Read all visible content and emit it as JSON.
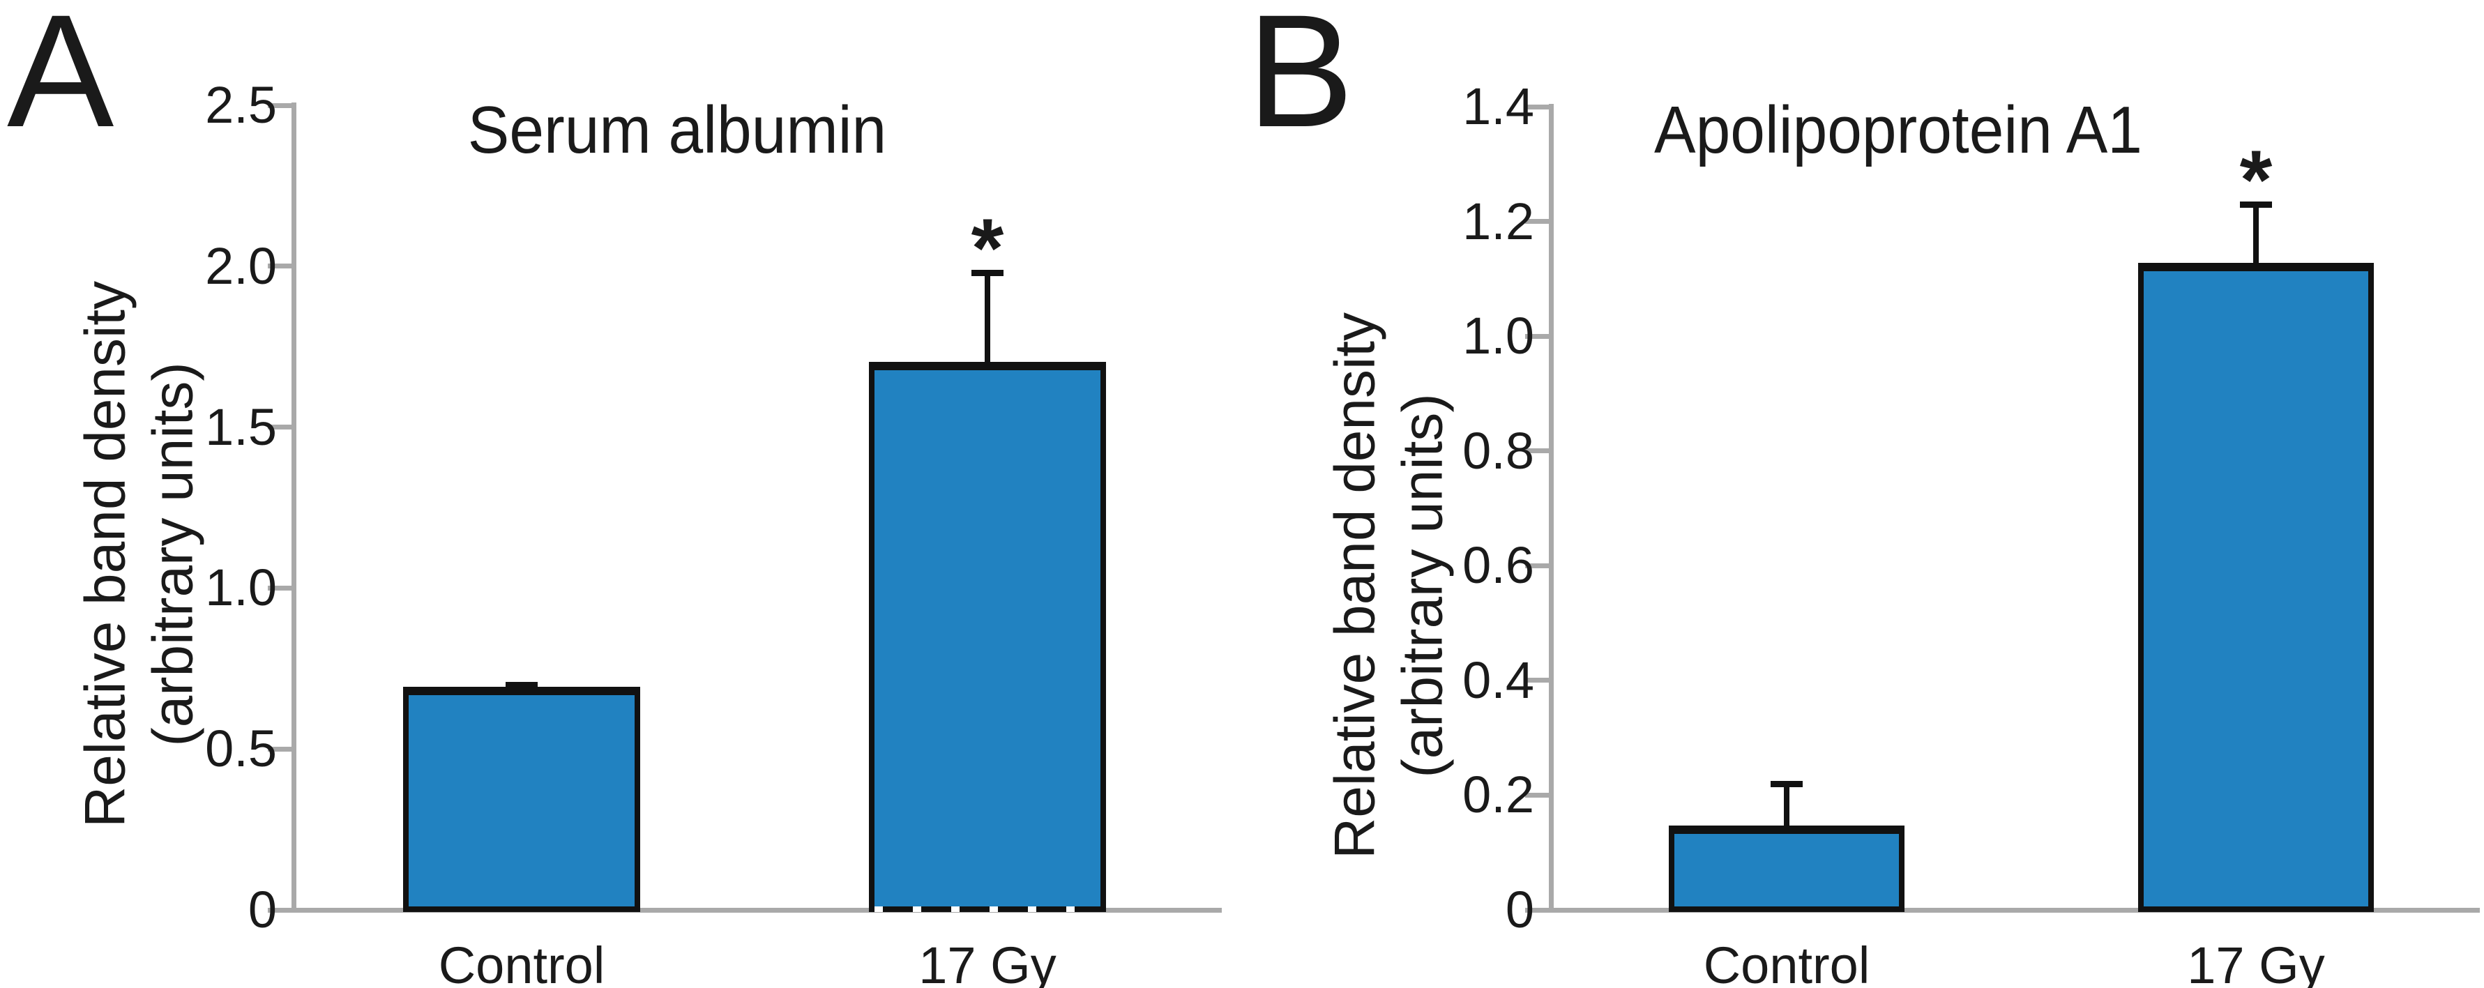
{
  "background": "#ffffff",
  "chart_data": [
    {
      "type": "bar",
      "panel_label": "A",
      "title": "Serum albumin",
      "ylabel_lines": [
        "Relative band density",
        "(arbitrary units)"
      ],
      "categories": [
        "Control",
        "17 Gy"
      ],
      "values": [
        0.68,
        1.69
      ],
      "error_up": [
        0.02,
        0.29
      ],
      "significance": [
        "",
        "*"
      ],
      "ylim": [
        0,
        2.5
      ],
      "yticks": [
        0,
        0.5,
        1.0,
        1.5,
        2.0,
        2.5
      ],
      "ytick_labels": [
        "0",
        "0.5",
        "1.0",
        "1.5",
        "2.0",
        "2.5"
      ],
      "grid": false,
      "legend": null,
      "bar_color": "#2182c1",
      "axis_color": "#a9a9a9"
    },
    {
      "type": "bar",
      "panel_label": "B",
      "title": "Apolipoprotein A1",
      "ylabel_lines": [
        "Relative band density",
        "(arbitrary units)"
      ],
      "categories": [
        "Control",
        "17 Gy"
      ],
      "values": [
        0.14,
        1.12
      ],
      "error_up": [
        0.08,
        0.11
      ],
      "significance": [
        "",
        "*"
      ],
      "ylim": [
        0,
        1.4
      ],
      "yticks": [
        0,
        0.2,
        0.4,
        0.6,
        0.8,
        1.0,
        1.2,
        1.4
      ],
      "ytick_labels": [
        "0",
        "0.2",
        "0.4",
        "0.6",
        "0.8",
        "1.0",
        "1.2",
        "1.4"
      ],
      "grid": false,
      "legend": null,
      "bar_color": "#2182c1",
      "axis_color": "#a9a9a9"
    }
  ]
}
